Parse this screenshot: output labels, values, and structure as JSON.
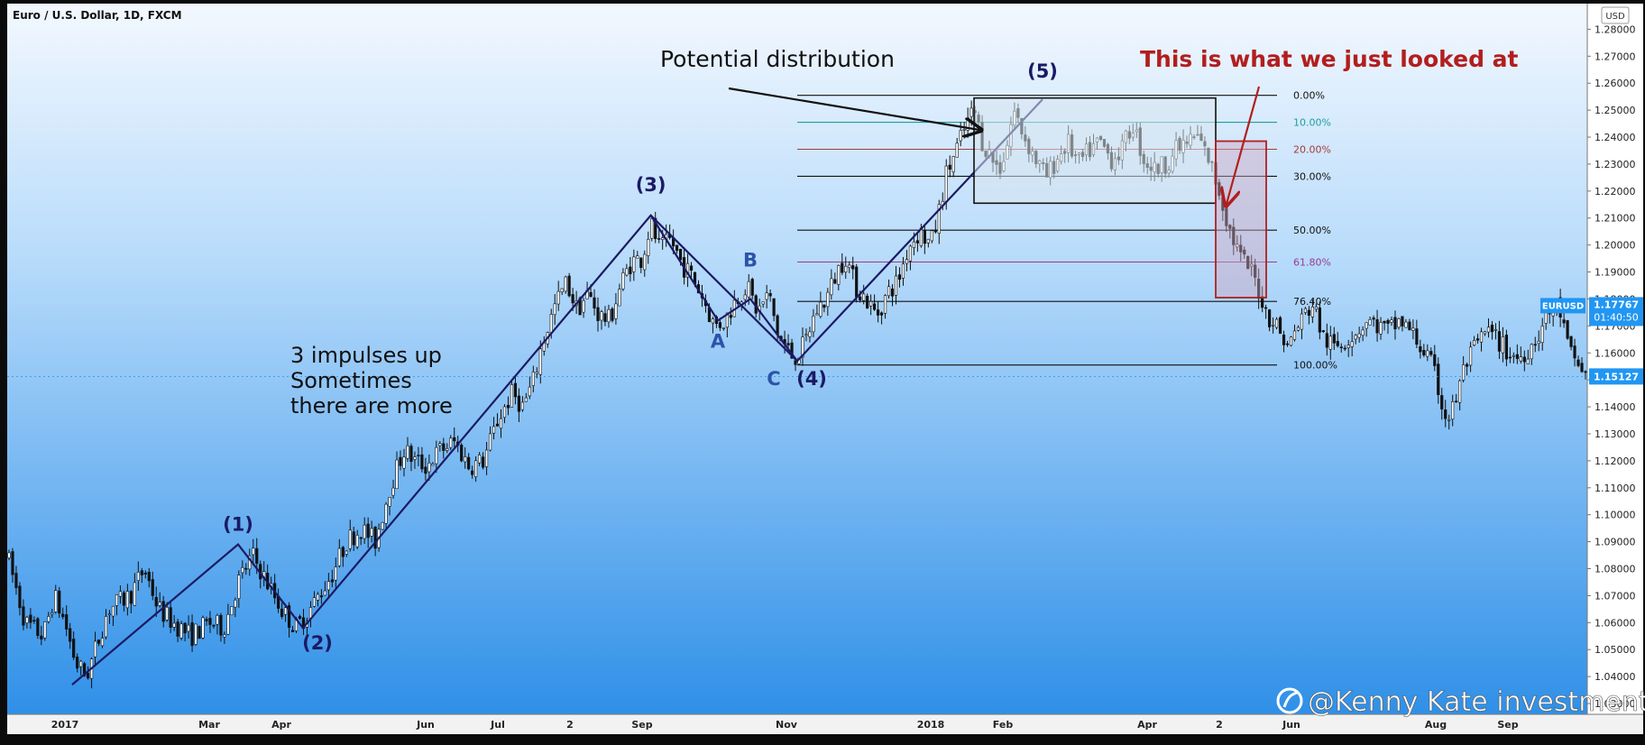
{
  "header": {
    "symbol_title": "Euro / U.S. Dollar, 1D, FXCM",
    "currency_button": "USD"
  },
  "watermark": "@Kenny Kate investment",
  "annotations": {
    "potential_distribution": "Potential distribution",
    "just_looked_at": "This is what we just looked at",
    "impulses_note": [
      "3 impulses up",
      "Sometimes",
      "there are more"
    ]
  },
  "wave_labels": {
    "w1": "(1)",
    "w2": "(2)",
    "w3": "(3)",
    "w4": "(4)",
    "w5": "(5)",
    "A": "A",
    "B": "B",
    "C": "C"
  },
  "price_tag": {
    "symbol": "EURUSD",
    "price": "1.17767",
    "countdown": "01:40:50",
    "last_price": "1.15127"
  },
  "colors": {
    "bg_top": "#2e8fe6",
    "bg_bottom": "#f4f9ff",
    "candle": "#111111",
    "wave_line": "#1b1a63",
    "annotation_red": "#b21e1e",
    "tag_blue": "#2196f3",
    "fib_teal": "#1f9e9e",
    "fib_red": "#a63a3a",
    "fib_purple": "#9b3b8e"
  },
  "chart_data": {
    "type": "candlestick",
    "title": "Euro / U.S. Dollar, 1D, FXCM",
    "y_ticks": [
      "1.28000",
      "1.27000",
      "1.26000",
      "1.25000",
      "1.24000",
      "1.23000",
      "1.22000",
      "1.21000",
      "1.20000",
      "1.19000",
      "1.18000",
      "1.17000",
      "1.16000",
      "1.15000",
      "1.14000",
      "1.13000",
      "1.12000",
      "1.11000",
      "1.10000",
      "1.09000",
      "1.08000",
      "1.07000",
      "1.06000",
      "1.05000",
      "1.04000",
      "1.03000"
    ],
    "y_tick_values": [
      1.28,
      1.27,
      1.26,
      1.25,
      1.24,
      1.23,
      1.22,
      1.21,
      1.2,
      1.19,
      1.18,
      1.17,
      1.16,
      1.15,
      1.14,
      1.13,
      1.12,
      1.11,
      1.1,
      1.09,
      1.08,
      1.07,
      1.06,
      1.05,
      1.04,
      1.03
    ],
    "ylim": [
      1.026,
      1.2895
    ],
    "x_ticks": [
      "2017",
      "Mar",
      "Apr",
      "Jun",
      "Jul",
      "2",
      "Sep",
      "Nov",
      "2018",
      "Feb",
      "Apr",
      "2",
      "Jun",
      "Aug",
      "Sep"
    ],
    "x_tick_positions": [
      0.0,
      2.0,
      3.0,
      5.0,
      6.0,
      7.0,
      8.0,
      10.0,
      12.0,
      13.0,
      15.0,
      16.0,
      17.0,
      19.0,
      20.0
    ],
    "xlim": [
      -0.8,
      21.1
    ],
    "price_path": [
      [
        -0.8,
        1.085
      ],
      [
        -0.55,
        1.06
      ],
      [
        -0.3,
        1.055
      ],
      [
        -0.15,
        1.07
      ],
      [
        0,
        1.06
      ],
      [
        0.15,
        1.045
      ],
      [
        0.3,
        1.04
      ],
      [
        0.6,
        1.065
      ],
      [
        0.9,
        1.07
      ],
      [
        1.1,
        1.08
      ],
      [
        1.3,
        1.065
      ],
      [
        1.5,
        1.06
      ],
      [
        1.75,
        1.055
      ],
      [
        2.0,
        1.06
      ],
      [
        2.2,
        1.058
      ],
      [
        2.4,
        1.075
      ],
      [
        2.6,
        1.085
      ],
      [
        2.8,
        1.075
      ],
      [
        3.0,
        1.065
      ],
      [
        3.2,
        1.058
      ],
      [
        3.4,
        1.065
      ],
      [
        3.7,
        1.078
      ],
      [
        3.9,
        1.09
      ],
      [
        4.1,
        1.095
      ],
      [
        4.3,
        1.09
      ],
      [
        4.5,
        1.11
      ],
      [
        4.7,
        1.124
      ],
      [
        4.85,
        1.12
      ],
      [
        5.0,
        1.118
      ],
      [
        5.2,
        1.124
      ],
      [
        5.4,
        1.127
      ],
      [
        5.6,
        1.118
      ],
      [
        5.8,
        1.12
      ],
      [
        6.0,
        1.135
      ],
      [
        6.2,
        1.145
      ],
      [
        6.35,
        1.14
      ],
      [
        6.5,
        1.15
      ],
      [
        6.6,
        1.162
      ],
      [
        6.7,
        1.17
      ],
      [
        6.8,
        1.178
      ],
      [
        6.95,
        1.186
      ],
      [
        7.1,
        1.176
      ],
      [
        7.25,
        1.182
      ],
      [
        7.4,
        1.174
      ],
      [
        7.55,
        1.172
      ],
      [
        7.7,
        1.185
      ],
      [
        7.85,
        1.194
      ],
      [
        8.0,
        1.195
      ],
      [
        8.12,
        1.208
      ],
      [
        8.25,
        1.198
      ],
      [
        8.4,
        1.202
      ],
      [
        8.55,
        1.193
      ],
      [
        8.7,
        1.188
      ],
      [
        8.85,
        1.18
      ],
      [
        9.0,
        1.17
      ],
      [
        9.15,
        1.172
      ],
      [
        9.3,
        1.18
      ],
      [
        9.45,
        1.185
      ],
      [
        9.6,
        1.175
      ],
      [
        9.75,
        1.182
      ],
      [
        9.9,
        1.165
      ],
      [
        10.0,
        1.162
      ],
      [
        10.1,
        1.158
      ],
      [
        10.25,
        1.163
      ],
      [
        10.4,
        1.175
      ],
      [
        10.55,
        1.18
      ],
      [
        10.7,
        1.19
      ],
      [
        10.82,
        1.196
      ],
      [
        10.95,
        1.185
      ],
      [
        11.1,
        1.18
      ],
      [
        11.25,
        1.174
      ],
      [
        11.4,
        1.182
      ],
      [
        11.55,
        1.187
      ],
      [
        11.7,
        1.2
      ],
      [
        11.85,
        1.205
      ],
      [
        12.0,
        1.2
      ],
      [
        12.1,
        1.21
      ],
      [
        12.2,
        1.225
      ],
      [
        12.35,
        1.235
      ],
      [
        12.5,
        1.245
      ],
      [
        12.6,
        1.25
      ],
      [
        12.72,
        1.238
      ],
      [
        12.85,
        1.232
      ],
      [
        12.95,
        1.228
      ],
      [
        13.05,
        1.236
      ],
      [
        13.15,
        1.25
      ],
      [
        13.3,
        1.24
      ],
      [
        13.45,
        1.232
      ],
      [
        13.6,
        1.225
      ],
      [
        13.75,
        1.232
      ],
      [
        13.9,
        1.238
      ],
      [
        14.05,
        1.23
      ],
      [
        14.2,
        1.235
      ],
      [
        14.35,
        1.238
      ],
      [
        14.5,
        1.232
      ],
      [
        14.65,
        1.235
      ],
      [
        14.8,
        1.245
      ],
      [
        14.95,
        1.232
      ],
      [
        15.1,
        1.228
      ],
      [
        15.25,
        1.23
      ],
      [
        15.4,
        1.235
      ],
      [
        15.55,
        1.238
      ],
      [
        15.7,
        1.24
      ],
      [
        15.85,
        1.232
      ],
      [
        16.0,
        1.22
      ],
      [
        16.15,
        1.205
      ],
      [
        16.3,
        1.195
      ],
      [
        16.45,
        1.19
      ],
      [
        16.55,
        1.183
      ],
      [
        16.65,
        1.175
      ],
      [
        16.8,
        1.17
      ],
      [
        16.95,
        1.162
      ],
      [
        17.05,
        1.168
      ],
      [
        17.2,
        1.175
      ],
      [
        17.3,
        1.178
      ],
      [
        17.45,
        1.165
      ],
      [
        17.6,
        1.162
      ],
      [
        17.75,
        1.165
      ],
      [
        17.9,
        1.168
      ],
      [
        18.05,
        1.172
      ],
      [
        18.2,
        1.17
      ],
      [
        18.35,
        1.168
      ],
      [
        18.5,
        1.172
      ],
      [
        18.65,
        1.168
      ],
      [
        18.8,
        1.162
      ],
      [
        18.95,
        1.155
      ],
      [
        19.05,
        1.145
      ],
      [
        19.15,
        1.135
      ],
      [
        19.25,
        1.14
      ],
      [
        19.4,
        1.155
      ],
      [
        19.55,
        1.162
      ],
      [
        19.7,
        1.168
      ],
      [
        19.85,
        1.165
      ],
      [
        20.0,
        1.16
      ],
      [
        20.15,
        1.158
      ],
      [
        20.3,
        1.162
      ],
      [
        20.45,
        1.168
      ],
      [
        20.55,
        1.174
      ],
      [
        20.7,
        1.178
      ],
      [
        20.85,
        1.16
      ],
      [
        21.0,
        1.155
      ],
      [
        21.1,
        1.151
      ]
    ],
    "wave_lines": [
      [
        [
          0.1,
          1.037
        ],
        [
          2.4,
          1.089
        ],
        [
          3.3,
          1.058
        ],
        [
          8.12,
          1.211
        ],
        [
          10.15,
          1.157
        ],
        [
          13.55,
          1.254
        ]
      ],
      [
        [
          8.12,
          1.211
        ],
        [
          9.05,
          1.172
        ],
        [
          9.5,
          1.18
        ],
        [
          10.15,
          1.157
        ]
      ]
    ],
    "wave_label_points": {
      "w1": [
        2.4,
        1.094
      ],
      "w2": [
        3.5,
        1.05
      ],
      "w3": [
        8.12,
        1.22
      ],
      "w4": [
        10.15,
        1.148
      ],
      "w5": [
        13.55,
        1.262
      ],
      "A": [
        9.05,
        1.162
      ],
      "B": [
        9.5,
        1.192
      ],
      "C": [
        9.9,
        1.148
      ]
    },
    "fib_levels": [
      {
        "label": "0.00%",
        "value": 1.2555
      },
      {
        "label": "10.00%",
        "value": 1.2455
      },
      {
        "label": "20.00%",
        "value": 1.2355
      },
      {
        "label": "30.00%",
        "value": 1.2255
      },
      {
        "label": "50.00%",
        "value": 1.2055
      },
      {
        "label": "61.80%",
        "value": 1.1937
      },
      {
        "label": "76.40%",
        "value": 1.1791
      },
      {
        "label": "100.00%",
        "value": 1.1555
      }
    ],
    "fib_x_range": [
      10.15,
      16.8
    ],
    "distribution_box": {
      "x": [
        12.6,
        15.95
      ],
      "y": [
        1.2155,
        1.2545
      ]
    },
    "just_looked_box": {
      "x": [
        15.95,
        16.65
      ],
      "y": [
        1.1805,
        1.2385
      ]
    },
    "last_price": 1.15127,
    "current_price": 1.17767
  }
}
